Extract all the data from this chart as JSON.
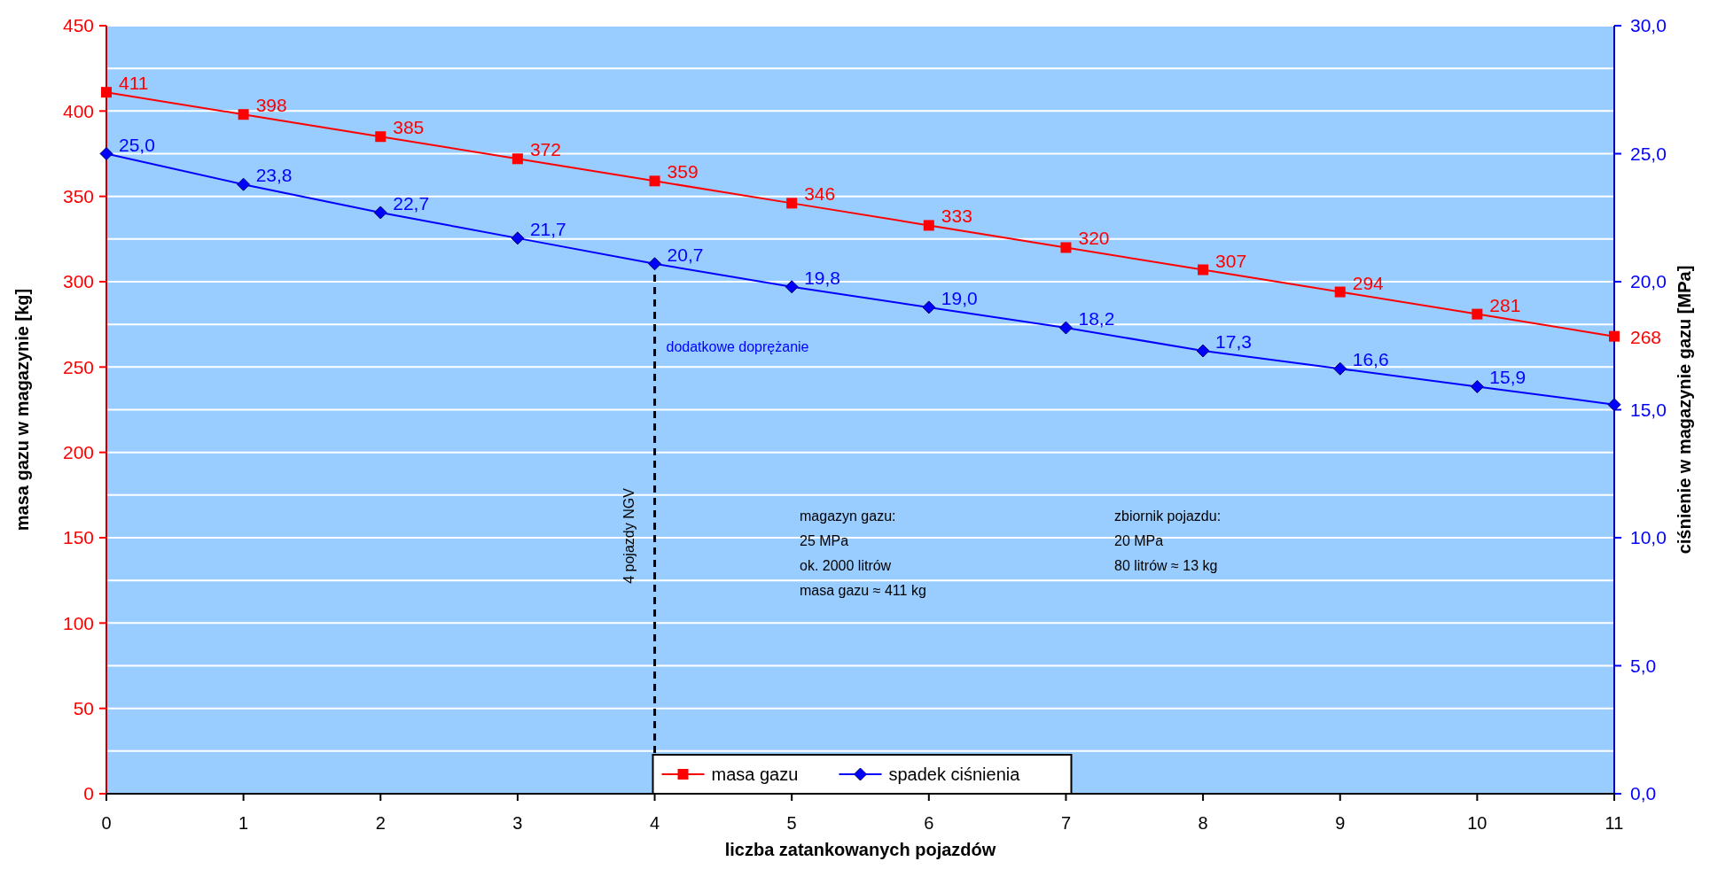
{
  "chart_data": {
    "type": "line",
    "xlabel": "liczba zatankowanych pojazdów",
    "ylabel": "masa gazu w magazynie [kg]",
    "y2label": "ciśnienie w magazynie gazu [MPa]",
    "x": [
      0,
      1,
      2,
      3,
      4,
      5,
      6,
      7,
      8,
      9,
      10,
      11
    ],
    "xlim": [
      0,
      11
    ],
    "xticks": [
      0,
      1,
      2,
      3,
      4,
      5,
      6,
      7,
      8,
      9,
      10,
      11
    ],
    "ylim": [
      0,
      450
    ],
    "yticks": [
      0,
      {
        "value": 25,
        "label": null
      },
      50,
      {
        "value": 75,
        "label": null
      },
      100,
      {
        "value": 125,
        "label": null
      },
      150,
      {
        "value": 175,
        "label": null
      },
      200,
      {
        "value": 225,
        "label": null
      },
      250,
      {
        "value": 275,
        "label": null
      },
      300,
      {
        "value": 325,
        "label": null
      },
      350,
      {
        "value": 375,
        "label": null
      },
      400,
      {
        "value": 425,
        "label": null
      },
      450
    ],
    "y2lim": [
      0,
      30
    ],
    "y2ticks": [
      {
        "value": 0,
        "label": "0,0"
      },
      {
        "value": 5,
        "label": "5,0"
      },
      {
        "value": 10,
        "label": "10,0"
      },
      {
        "value": 15,
        "label": "15,0"
      },
      {
        "value": 20,
        "label": "20,0"
      },
      {
        "value": 25,
        "label": "25,0"
      },
      {
        "value": 30,
        "label": "30,0"
      }
    ],
    "grid": "y",
    "legend": "bottom",
    "series": [
      {
        "name": "masa gazu",
        "color": "#ff0000",
        "marker": "square",
        "values": [
          411,
          398,
          385,
          372,
          359,
          346,
          333,
          320,
          307,
          294,
          281,
          268
        ],
        "value_labels": [
          "411",
          "398",
          "385",
          "372",
          "359",
          "346",
          "333",
          "320",
          "307",
          "294",
          "281",
          "268"
        ]
      },
      {
        "name": "spadek ciśnienia",
        "color": "#0000ff",
        "marker": "diamond",
        "axis": "y2",
        "values": [
          25.0,
          23.8,
          22.7,
          21.7,
          20.7,
          19.8,
          19.0,
          18.2,
          17.3,
          16.6,
          15.9,
          15.2
        ],
        "value_labels": [
          "25,0",
          "23,8",
          "22,7",
          "21,7",
          "20,7",
          "19,8",
          "19,0",
          "18,2",
          "17,3",
          "16,6",
          "15,9",
          null
        ]
      }
    ],
    "ref_lines": [
      {
        "axis": "x",
        "value": 4,
        "label": "4 pojazdy NGV",
        "color": "#000000",
        "line_style": "dashed"
      }
    ],
    "annotations": [
      "dodatkowe doprężanie",
      "magazyn gazu:\n25 MPa\nok. 2000 litrów\nmasa gazu ≈ 411 kg",
      "zbiornik pojazdu:\n20 MPa\n80 litrów ≈ 13 kg"
    ]
  }
}
